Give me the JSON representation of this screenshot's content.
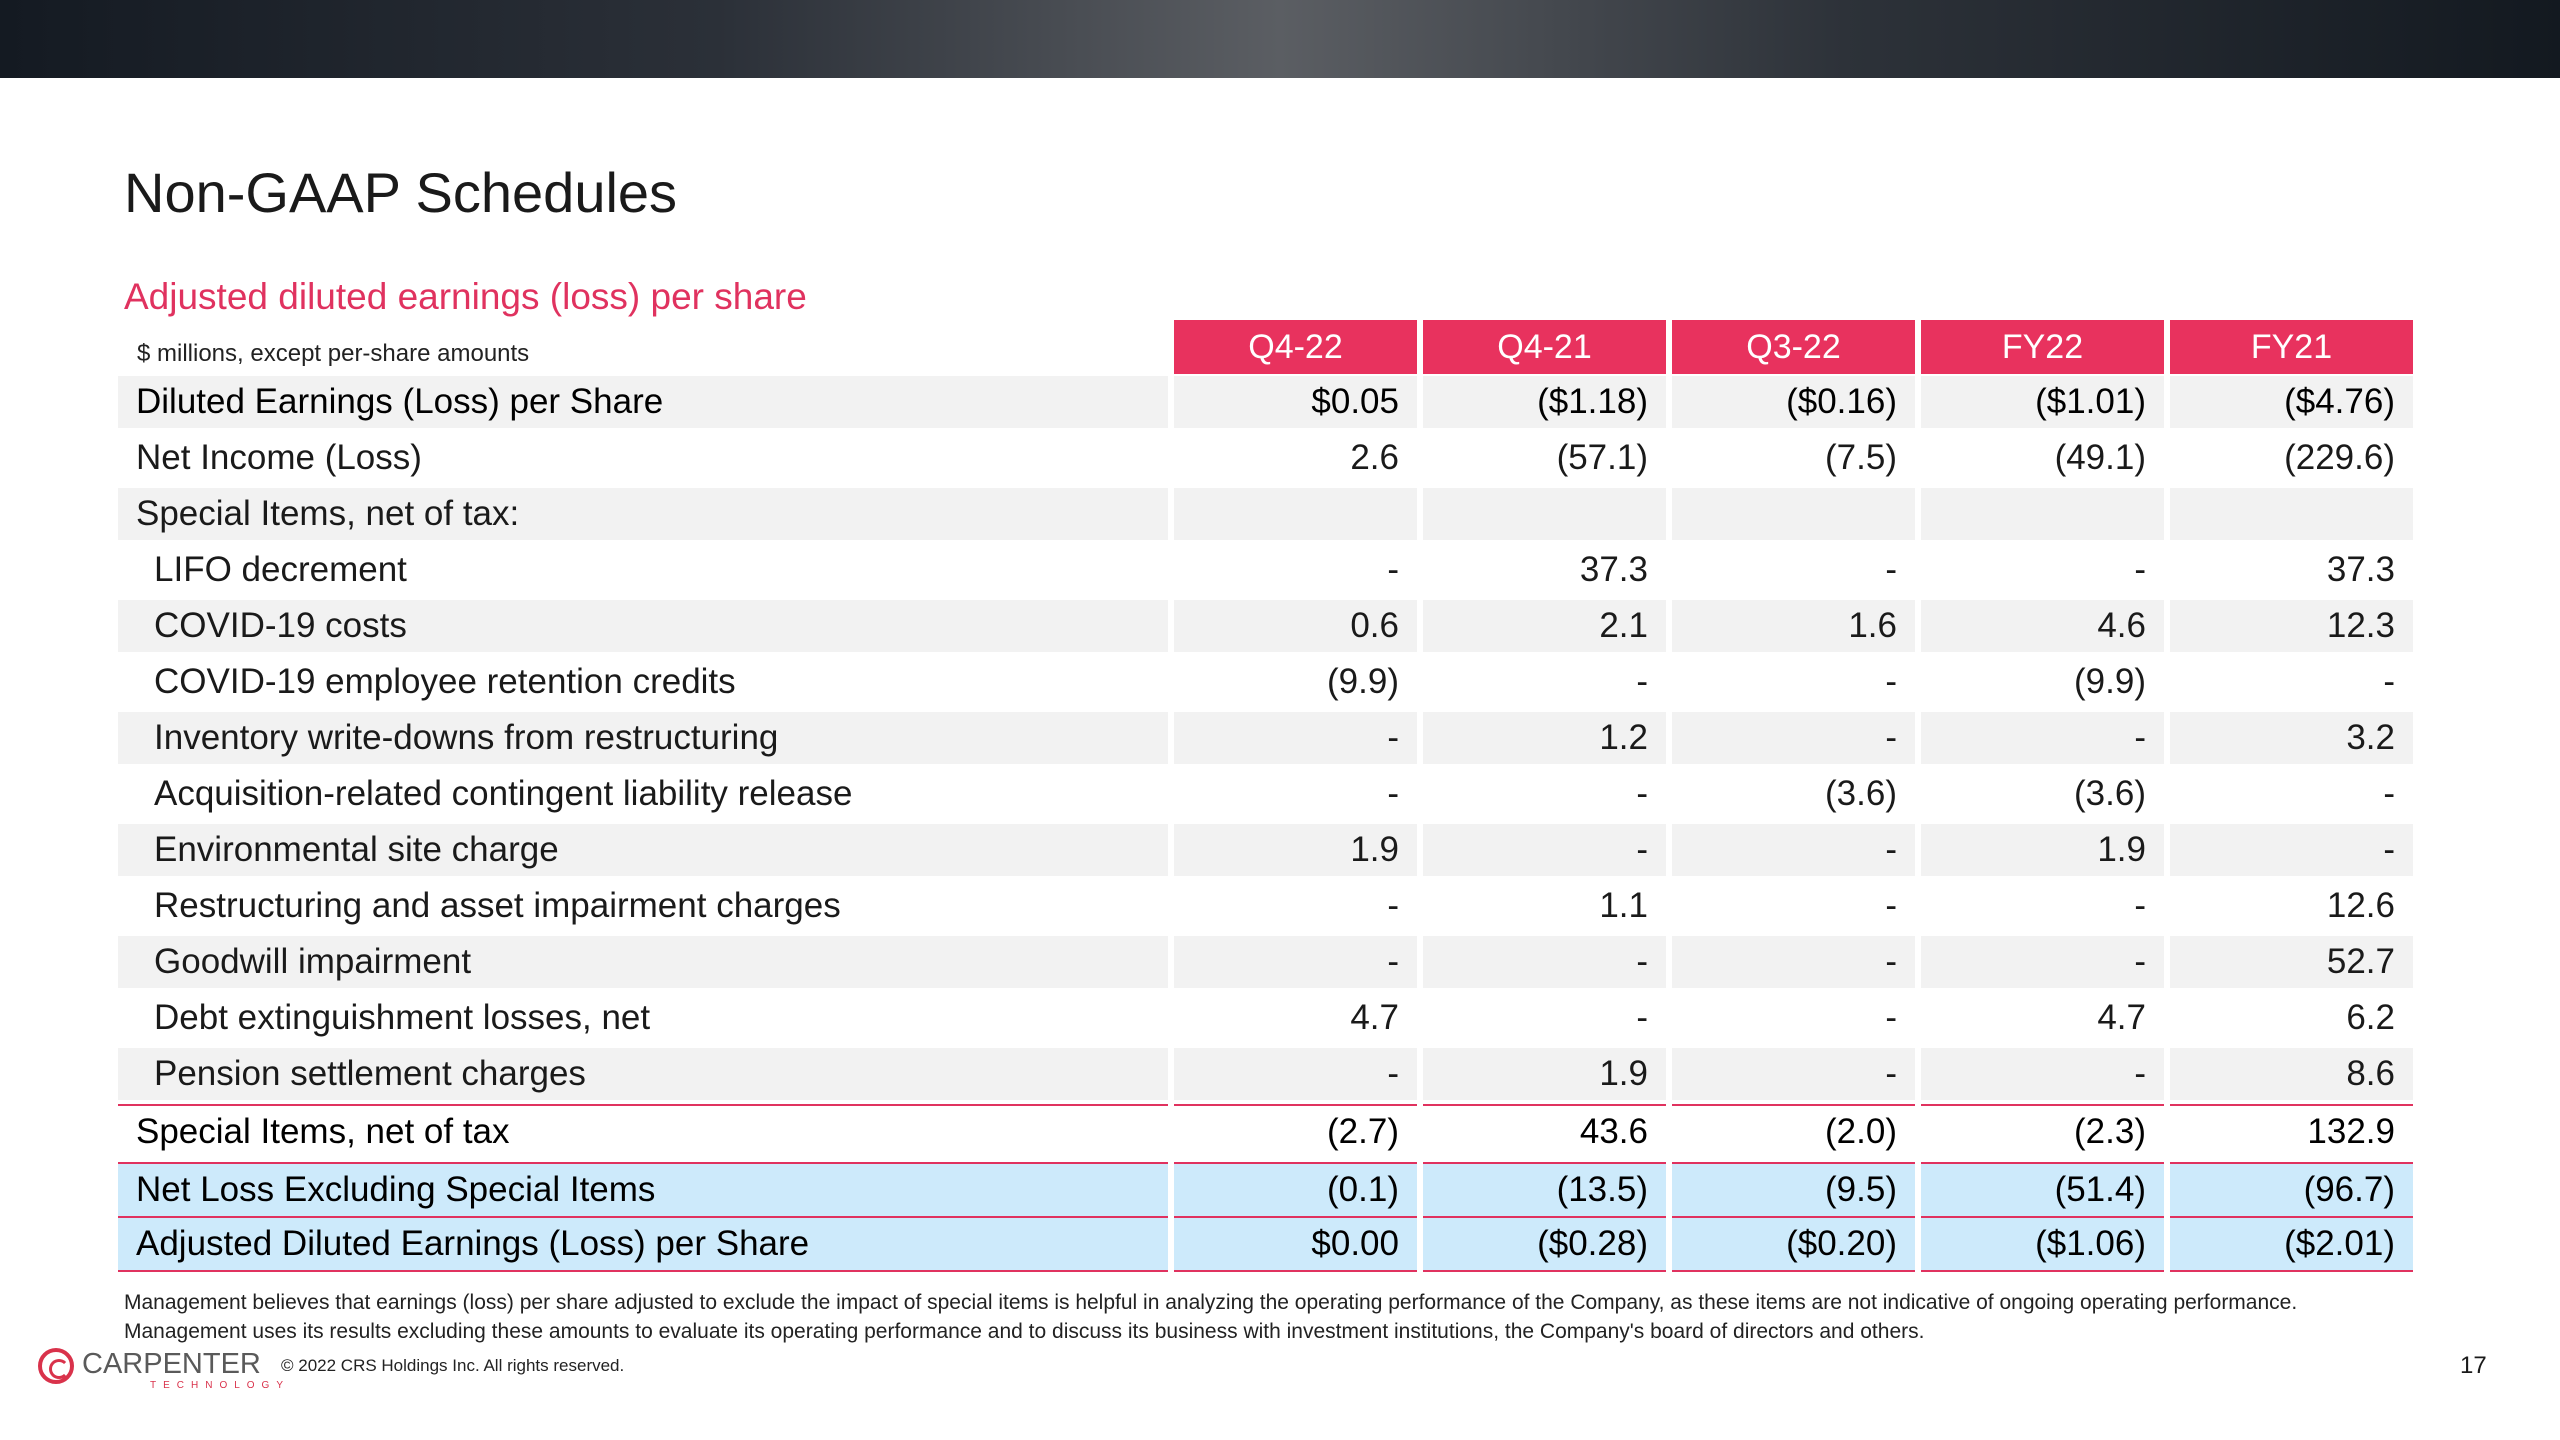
{
  "page": {
    "title": "Non-GAAP Schedules",
    "subtitle": "Adjusted diluted earnings (loss) per share",
    "units_note": "$ millions, except per-share amounts",
    "page_number": "17",
    "accent_color": "#e8325e",
    "highlight_color": "#cdeafb"
  },
  "table": {
    "columns": [
      "Q4-22",
      "Q4-21",
      "Q3-22",
      "FY22",
      "FY21"
    ],
    "rows": [
      {
        "label": "Diluted Earnings (Loss) per Share",
        "values": [
          "$0.05",
          "($1.18)",
          "($0.16)",
          "($1.01)",
          "($4.76)"
        ]
      },
      {
        "label": "Net Income (Loss)",
        "values": [
          "2.6",
          "(57.1)",
          "(7.5)",
          "(49.1)",
          "(229.6)"
        ]
      },
      {
        "label": "Special Items, net of tax:",
        "values": [
          "",
          "",
          "",
          "",
          ""
        ]
      },
      {
        "label": "LIFO decrement",
        "values": [
          "-",
          "37.3",
          "-",
          "-",
          "37.3"
        ]
      },
      {
        "label": "COVID-19 costs",
        "values": [
          "0.6",
          "2.1",
          "1.6",
          "4.6",
          "12.3"
        ]
      },
      {
        "label": "COVID-19 employee retention credits",
        "values": [
          "(9.9)",
          "-",
          "-",
          "(9.9)",
          "-"
        ]
      },
      {
        "label": "Inventory write-downs from restructuring",
        "values": [
          "-",
          "1.2",
          "-",
          "-",
          "3.2"
        ]
      },
      {
        "label": "Acquisition-related contingent liability release",
        "values": [
          "-",
          "-",
          "(3.6)",
          "(3.6)",
          "-"
        ]
      },
      {
        "label": "Environmental site charge",
        "values": [
          "1.9",
          "-",
          "-",
          "1.9",
          "-"
        ]
      },
      {
        "label": "Restructuring and asset impairment charges",
        "values": [
          "-",
          "1.1",
          "-",
          "-",
          "12.6"
        ]
      },
      {
        "label": "Goodwill impairment",
        "values": [
          "-",
          "-",
          "-",
          "-",
          "52.7"
        ]
      },
      {
        "label": "Debt extinguishment losses, net",
        "values": [
          "4.7",
          "-",
          "-",
          "4.7",
          "6.2"
        ]
      },
      {
        "label": "Pension settlement charges",
        "values": [
          "-",
          "1.9",
          "-",
          "-",
          "8.6"
        ]
      },
      {
        "label": "Special Items, net of tax",
        "values": [
          "(2.7)",
          "43.6",
          "(2.0)",
          "(2.3)",
          "132.9"
        ]
      },
      {
        "label": "Net Loss Excluding Special Items",
        "values": [
          "(0.1)",
          "(13.5)",
          "(9.5)",
          "(51.4)",
          "(96.7)"
        ]
      },
      {
        "label": "Adjusted Diluted Earnings (Loss) per Share",
        "values": [
          "$0.00",
          "($0.28)",
          "($0.20)",
          "($1.06)",
          "($2.01)"
        ]
      }
    ]
  },
  "footnote": {
    "line1": "Management believes that earnings (loss) per share adjusted to exclude the impact of special items is helpful in analyzing the operating performance of the Company, as these items are not indicative of ongoing operating performance.",
    "line2": "Management uses its results excluding these amounts to evaluate its operating performance and to discuss its business with investment institutions, the Company's board of directors and others."
  },
  "footer": {
    "logo_name": "CARPENTER",
    "logo_sub": "TECHNOLOGY",
    "copyright": "© 2022 CRS Holdings Inc. All rights reserved."
  }
}
